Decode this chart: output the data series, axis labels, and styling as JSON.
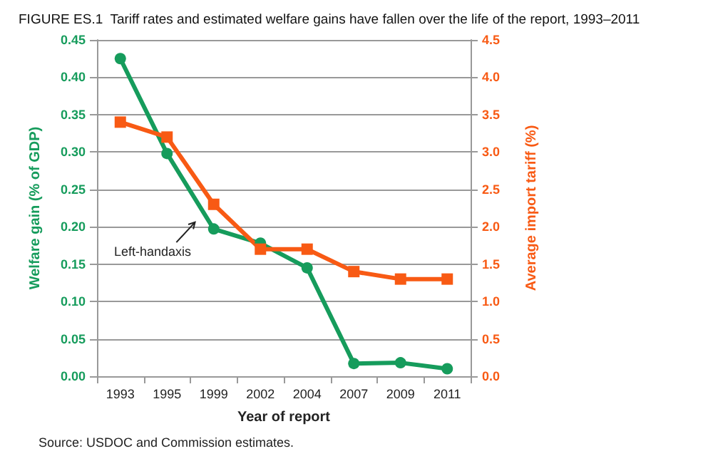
{
  "chart_data": {
    "type": "line",
    "title": "FIGURE ES.1  Tariff rates and estimated welfare gains have fallen over the life of the report, 1993–2011",
    "xlabel": "Year of report",
    "ylabel": "Welfare gain (% of GDP)",
    "y2label": "Average import tariff (%)",
    "categories": [
      "1993",
      "1995",
      "1999",
      "2002",
      "2004",
      "2007",
      "2009",
      "2011"
    ],
    "series": [
      {
        "color": "#169c5c",
        "marker": "circle",
        "values": [
          0.425,
          0.298,
          0.197,
          0.178,
          0.145,
          0.017,
          0.018,
          0.01
        ]
      },
      {
        "color": "#f85a14",
        "marker": "square",
        "axis": "y2",
        "values": [
          3.4,
          3.2,
          2.3,
          1.7,
          1.7,
          1.4,
          1.3,
          1.3
        ]
      }
    ],
    "ylim": [
      0,
      0.45
    ],
    "yticks": [
      {
        "value": 0,
        "label": "0.00"
      },
      {
        "value": 0.05,
        "label": "0.05"
      },
      {
        "value": 0.1,
        "label": "0.10"
      },
      {
        "value": 0.15,
        "label": "0.15"
      },
      {
        "value": 0.2,
        "label": "0.20"
      },
      {
        "value": 0.25,
        "label": "0.25"
      },
      {
        "value": 0.3,
        "label": "0.30"
      },
      {
        "value": 0.35,
        "label": "0.35"
      },
      {
        "value": 0.4,
        "label": "0.40"
      },
      {
        "value": 0.45,
        "label": "0.45"
      }
    ],
    "y2lim": [
      0,
      4.5
    ],
    "y2ticks": [
      {
        "value": 0,
        "label": "0.0"
      },
      {
        "value": 0.5,
        "label": "0.5"
      },
      {
        "value": 1,
        "label": "1.0"
      },
      {
        "value": 1.5,
        "label": "1.5"
      },
      {
        "value": 2,
        "label": "2.0"
      },
      {
        "value": 2.5,
        "label": "2.5"
      },
      {
        "value": 3,
        "label": "3.0"
      },
      {
        "value": 3.5,
        "label": "3.5"
      },
      {
        "value": 4,
        "label": "4.0"
      },
      {
        "value": 4.5,
        "label": "4.5"
      }
    ],
    "grid": "y",
    "line_style": "solid",
    "annotations": [
      "Left-handaxis",
      "Source: USDOC and Commission estimates."
    ]
  }
}
